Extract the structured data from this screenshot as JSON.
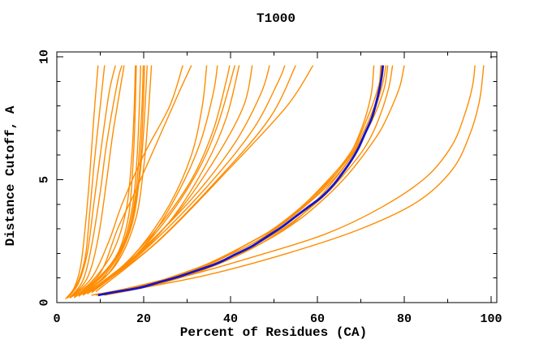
{
  "chart_data": {
    "type": "line",
    "title": "T1000",
    "xlabel": "Percent of Residues (CA)",
    "ylabel": "Distance Cutoff, A",
    "xlim": [
      0,
      100
    ],
    "ylim": [
      0,
      10
    ],
    "grid": false,
    "legend": "none",
    "x_major_ticks": [
      0,
      20,
      40,
      60,
      80,
      100
    ],
    "x_minor_ticks": [
      10,
      30,
      50,
      70,
      90
    ],
    "y_major_ticks": [
      0,
      5,
      10
    ],
    "y_minor_ticks": [
      1,
      2,
      3,
      4,
      6,
      7,
      8,
      9
    ],
    "colors": {
      "model": "#ff8c00",
      "highlight": "#1414cc",
      "axis": "#000000",
      "background": "#ffffff",
      "text": "#000000"
    },
    "highlight_series": {
      "name": "highlighted-model",
      "color": "#1414cc",
      "points": [
        [
          9.5,
          0.3
        ],
        [
          14,
          0.45
        ],
        [
          19,
          0.6
        ],
        [
          24,
          0.85
        ],
        [
          28,
          1.05
        ],
        [
          33,
          1.35
        ],
        [
          37,
          1.6
        ],
        [
          41,
          1.95
        ],
        [
          45,
          2.3
        ],
        [
          49,
          2.75
        ],
        [
          52,
          3.1
        ],
        [
          55,
          3.5
        ],
        [
          58,
          3.9
        ],
        [
          61,
          4.3
        ],
        [
          63.5,
          4.75
        ],
        [
          65.5,
          5.2
        ],
        [
          67.5,
          5.7
        ],
        [
          69.5,
          6.3
        ],
        [
          71,
          6.9
        ],
        [
          72.5,
          7.5
        ],
        [
          73.5,
          8.1
        ],
        [
          74.3,
          8.7
        ],
        [
          74.8,
          9.2
        ],
        [
          75.1,
          9.65
        ]
      ]
    },
    "model_series": [
      {
        "points": [
          [
            2,
            0.15
          ],
          [
            4,
            0.6
          ],
          [
            5.5,
            1.5
          ],
          [
            6.5,
            3
          ],
          [
            7.5,
            5
          ],
          [
            8.5,
            7.5
          ],
          [
            9.5,
            9.65
          ]
        ]
      },
      {
        "points": [
          [
            2,
            0.15
          ],
          [
            4.5,
            0.7
          ],
          [
            6.5,
            1.8
          ],
          [
            7.5,
            3.5
          ],
          [
            8.5,
            5.5
          ],
          [
            10,
            8
          ],
          [
            11,
            9.65
          ]
        ]
      },
      {
        "points": [
          [
            2.5,
            0.18
          ],
          [
            5,
            0.8
          ],
          [
            7,
            2
          ],
          [
            8.5,
            4
          ],
          [
            10,
            6
          ],
          [
            12,
            8.5
          ],
          [
            13.5,
            9.65
          ]
        ]
      },
      {
        "points": [
          [
            3,
            0.2
          ],
          [
            6,
            0.9
          ],
          [
            8,
            2.3
          ],
          [
            10,
            4.5
          ],
          [
            11.5,
            6.5
          ],
          [
            14,
            9
          ],
          [
            15,
            9.65
          ]
        ]
      },
      {
        "points": [
          [
            3,
            0.2
          ],
          [
            7,
            1
          ],
          [
            9.5,
            2.6
          ],
          [
            11.5,
            5
          ],
          [
            13,
            7
          ],
          [
            15.5,
            9.65
          ]
        ]
      },
      {
        "points": [
          [
            4,
            0.2
          ],
          [
            9,
            0.9
          ],
          [
            14,
            2
          ],
          [
            16.5,
            3.5
          ],
          [
            17.5,
            5.5
          ],
          [
            18,
            7.5
          ],
          [
            18.3,
            9.65
          ]
        ]
      },
      {
        "points": [
          [
            4,
            0.25
          ],
          [
            10,
            1
          ],
          [
            15,
            2.3
          ],
          [
            17.5,
            4
          ],
          [
            18.5,
            6
          ],
          [
            19,
            8
          ],
          [
            19.3,
            9.65
          ]
        ]
      },
      {
        "points": [
          [
            5,
            0.25
          ],
          [
            11,
            1.1
          ],
          [
            16,
            2.6
          ],
          [
            18.5,
            4.5
          ],
          [
            19.5,
            6.5
          ],
          [
            20,
            8.5
          ],
          [
            20.2,
            9.65
          ]
        ]
      },
      {
        "points": [
          [
            5,
            0.3
          ],
          [
            12,
            1.2
          ],
          [
            17,
            3
          ],
          [
            19,
            5
          ],
          [
            20,
            7
          ],
          [
            20.8,
            9.65
          ]
        ]
      },
      {
        "points": [
          [
            5,
            0.3
          ],
          [
            13,
            1.4
          ],
          [
            18,
            3.3
          ],
          [
            20,
            5.5
          ],
          [
            21,
            7.5
          ],
          [
            21.8,
            9.65
          ]
        ]
      },
      {
        "points": [
          [
            4,
            0.2
          ],
          [
            10,
            1.05
          ],
          [
            15.5,
            2.4
          ],
          [
            18,
            4.2
          ],
          [
            19,
            6.2
          ],
          [
            19.6,
            8
          ],
          [
            19.9,
            9.65
          ]
        ]
      },
      {
        "points": [
          [
            3,
            0.18
          ],
          [
            8,
            0.85
          ],
          [
            13,
            2.1
          ],
          [
            16,
            3.8
          ],
          [
            17.2,
            5.8
          ],
          [
            17.8,
            7.8
          ],
          [
            18.1,
            9.65
          ]
        ]
      },
      {
        "points": [
          [
            3,
            0.2
          ],
          [
            8,
            1
          ],
          [
            12,
            2.5
          ],
          [
            15,
            4
          ],
          [
            20,
            6
          ],
          [
            26,
            8
          ],
          [
            29,
            9.65
          ]
        ]
      },
      {
        "points": [
          [
            4,
            0.2
          ],
          [
            10,
            1.2
          ],
          [
            14,
            3
          ],
          [
            18,
            4.5
          ],
          [
            23,
            6.5
          ],
          [
            28,
            8.5
          ],
          [
            31,
            9.65
          ]
        ]
      },
      {
        "points": [
          [
            5,
            0.3
          ],
          [
            12,
            1
          ],
          [
            19,
            2.2
          ],
          [
            26,
            4
          ],
          [
            31,
            6
          ],
          [
            33.5,
            8
          ],
          [
            34.5,
            9.65
          ]
        ]
      },
      {
        "points": [
          [
            5,
            0.3
          ],
          [
            13,
            1.1
          ],
          [
            21,
            2.5
          ],
          [
            28,
            4.5
          ],
          [
            33,
            6.5
          ],
          [
            36,
            8.5
          ],
          [
            37,
            9.65
          ]
        ]
      },
      {
        "points": [
          [
            6,
            0.3
          ],
          [
            14,
            1.3
          ],
          [
            23,
            3
          ],
          [
            31,
            5
          ],
          [
            36,
            7
          ],
          [
            39,
            9
          ],
          [
            39.8,
            9.65
          ]
        ]
      },
      {
        "points": [
          [
            6,
            0.35
          ],
          [
            16,
            1.5
          ],
          [
            26,
            3.3
          ],
          [
            34,
            5.5
          ],
          [
            39,
            7.5
          ],
          [
            42,
            9.65
          ]
        ]
      },
      {
        "points": [
          [
            7,
            0.35
          ],
          [
            17,
            1.7
          ],
          [
            28,
            3.7
          ],
          [
            37,
            6
          ],
          [
            43,
            8
          ],
          [
            45,
            9.65
          ]
        ]
      },
      {
        "points": [
          [
            6,
            0.3
          ],
          [
            15,
            1.4
          ],
          [
            24,
            3.1
          ],
          [
            32,
            5.2
          ],
          [
            37,
            7.2
          ],
          [
            41,
            9.65
          ]
        ]
      },
      {
        "points": [
          [
            7,
            0.4
          ],
          [
            18,
            1.9
          ],
          [
            31,
            4.2
          ],
          [
            41,
            6.5
          ],
          [
            47,
            8.5
          ],
          [
            49,
            9.65
          ]
        ]
      },
      {
        "points": [
          [
            8,
            0.4
          ],
          [
            20,
            2.1
          ],
          [
            34,
            4.6
          ],
          [
            45,
            7
          ],
          [
            51,
            9
          ],
          [
            52.5,
            9.65
          ]
        ]
      },
      {
        "points": [
          [
            8,
            0.45
          ],
          [
            22,
            2.3
          ],
          [
            37,
            5
          ],
          [
            49,
            7.5
          ],
          [
            55,
            9.65
          ]
        ]
      },
      {
        "points": [
          [
            9,
            0.45
          ],
          [
            24,
            2.6
          ],
          [
            40,
            5.5
          ],
          [
            53,
            8
          ],
          [
            59,
            9.65
          ]
        ]
      },
      {
        "points": [
          [
            8,
            0.3
          ],
          [
            17,
            0.6
          ],
          [
            26,
            1
          ],
          [
            35,
            1.6
          ],
          [
            43,
            2.3
          ],
          [
            50,
            3
          ],
          [
            56,
            3.8
          ],
          [
            61,
            4.6
          ],
          [
            65,
            5.4
          ],
          [
            68,
            6.2
          ],
          [
            70,
            7
          ],
          [
            71.5,
            7.8
          ],
          [
            72.5,
            8.6
          ],
          [
            73,
            9.65
          ]
        ]
      },
      {
        "points": [
          [
            11,
            0.3
          ],
          [
            21,
            0.65
          ],
          [
            30,
            1.1
          ],
          [
            39,
            1.7
          ],
          [
            47,
            2.4
          ],
          [
            54,
            3.2
          ],
          [
            59,
            4
          ],
          [
            63,
            4.8
          ],
          [
            66.5,
            5.6
          ],
          [
            69.5,
            6.4
          ],
          [
            72,
            7.2
          ],
          [
            74,
            8
          ],
          [
            75.5,
            8.8
          ],
          [
            76.2,
            9.65
          ]
        ]
      },
      {
        "points": [
          [
            10,
            0.35
          ],
          [
            20,
            0.7
          ],
          [
            29,
            1.2
          ],
          [
            38,
            1.8
          ],
          [
            46,
            2.5
          ],
          [
            52,
            3.2
          ],
          [
            57,
            3.9
          ],
          [
            62,
            4.7
          ],
          [
            66,
            5.5
          ],
          [
            69,
            6.3
          ],
          [
            71.5,
            7.1
          ],
          [
            73.5,
            8
          ],
          [
            75,
            8.9
          ],
          [
            75.8,
            9.65
          ]
        ]
      },
      {
        "points": [
          [
            9,
            0.3
          ],
          [
            18,
            0.6
          ],
          [
            28,
            1.1
          ],
          [
            37,
            1.7
          ],
          [
            44,
            2.4
          ],
          [
            51,
            3.1
          ],
          [
            57,
            4
          ],
          [
            62,
            4.9
          ],
          [
            66,
            5.7
          ],
          [
            69,
            6.5
          ],
          [
            71,
            7.3
          ],
          [
            73,
            8.2
          ],
          [
            74.5,
            9.1
          ],
          [
            74.8,
            9.65
          ]
        ]
      },
      {
        "points": [
          [
            12,
            0.4
          ],
          [
            24,
            0.9
          ],
          [
            35,
            1.5
          ],
          [
            44,
            2.2
          ],
          [
            52,
            3
          ],
          [
            58,
            3.8
          ],
          [
            63,
            4.6
          ],
          [
            67,
            5.4
          ],
          [
            70.5,
            6.2
          ],
          [
            73,
            7
          ],
          [
            75,
            7.9
          ],
          [
            76.5,
            8.8
          ],
          [
            77.3,
            9.65
          ]
        ]
      },
      {
        "points": [
          [
            8,
            0.3
          ],
          [
            16,
            0.55
          ],
          [
            25,
            0.95
          ],
          [
            34,
            1.5
          ],
          [
            42,
            2.2
          ],
          [
            49,
            2.9
          ],
          [
            55,
            3.7
          ],
          [
            60,
            4.5
          ],
          [
            64.5,
            5.3
          ],
          [
            68,
            6.1
          ],
          [
            70.5,
            6.9
          ],
          [
            72.5,
            7.7
          ],
          [
            74,
            8.5
          ],
          [
            74.6,
            9.65
          ]
        ]
      },
      {
        "points": [
          [
            13,
            0.45
          ],
          [
            26,
            1
          ],
          [
            38,
            1.7
          ],
          [
            48,
            2.5
          ],
          [
            56,
            3.4
          ],
          [
            62,
            4.3
          ],
          [
            67,
            5.2
          ],
          [
            71,
            6.1
          ],
          [
            74.5,
            7
          ],
          [
            77,
            7.9
          ],
          [
            79,
            8.8
          ],
          [
            80,
            9.65
          ]
        ]
      },
      {
        "points": [
          [
            12,
            0.4
          ],
          [
            28,
            1
          ],
          [
            46,
            1.9
          ],
          [
            62,
            2.8
          ],
          [
            75,
            3.9
          ],
          [
            85,
            5.1
          ],
          [
            91,
            6.4
          ],
          [
            94,
            7.7
          ],
          [
            95.7,
            8.8
          ],
          [
            96.3,
            9.65
          ]
        ]
      },
      {
        "points": [
          [
            15,
            0.45
          ],
          [
            34,
            1.1
          ],
          [
            53,
            2
          ],
          [
            70,
            3
          ],
          [
            83,
            4.1
          ],
          [
            91,
            5.4
          ],
          [
            95,
            6.8
          ],
          [
            97.3,
            8.2
          ],
          [
            98.3,
            9.65
          ]
        ]
      }
    ]
  }
}
